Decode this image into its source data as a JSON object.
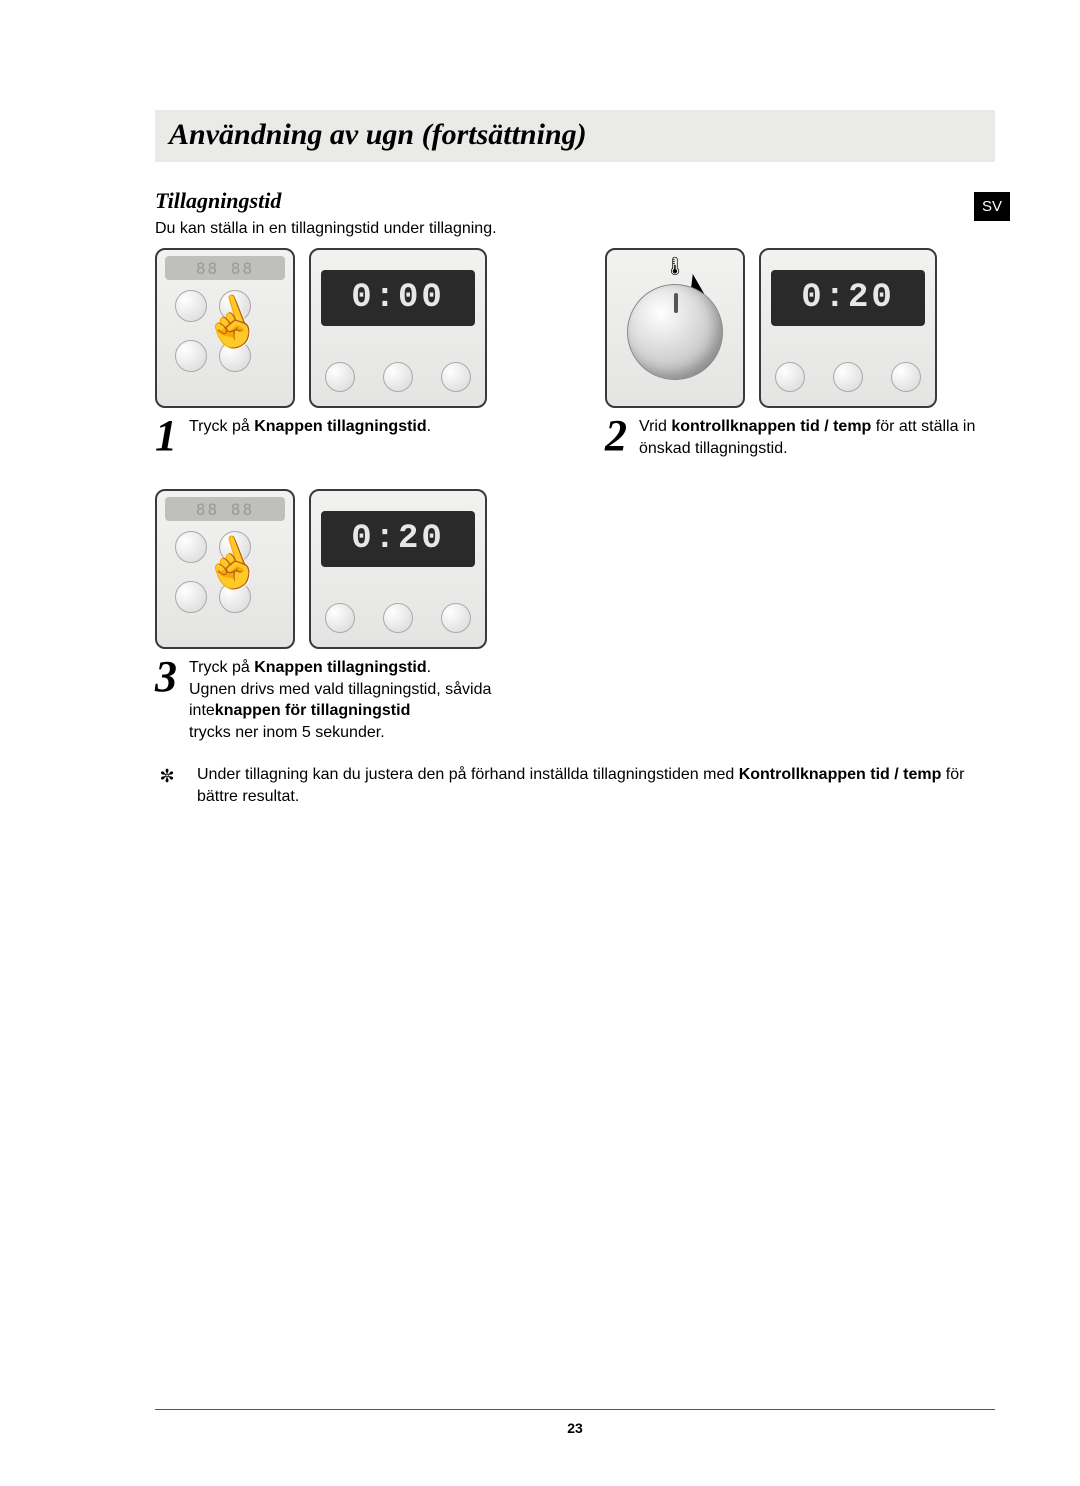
{
  "page": {
    "title": "Användning av ugn (fortsättning)",
    "lang_badge": "SV",
    "page_number": "23"
  },
  "section": {
    "heading": "Tillagningstid",
    "intro": "Du kan ställa in en tillagningstid under tillagning."
  },
  "steps": {
    "s1": {
      "num": "1",
      "display": "0:00",
      "text_pre": "Tryck på ",
      "text_bold": "Knappen tillagningstid",
      "text_post": "."
    },
    "s2": {
      "num": "2",
      "display": "0:20",
      "text_pre": "Vrid ",
      "text_bold": "kontrollknappen tid / temp",
      "text_mid": " för att ställa in önskad tillagningstid."
    },
    "s3": {
      "num": "3",
      "display": "0:20",
      "line1_pre": "Tryck på ",
      "line1_bold": "Knappen tillagningstid",
      "line1_post": ".",
      "line2": "Ugnen drivs med vald tillagningstid, såvida inte",
      "line2_bold": "knappen för tillagningstid",
      "line3": "trycks ner inom 5 sekunder."
    }
  },
  "note": {
    "icon": "✼",
    "text_pre": "Under tillagning kan du justera den på förhand inställda tillagningstiden med ",
    "text_bold": "Kontrollknappen tid / temp",
    "text_post": " för bättre resultat."
  },
  "panel_strip": "88 88",
  "thermo_icon": "🌡",
  "hand_icon": "☝"
}
